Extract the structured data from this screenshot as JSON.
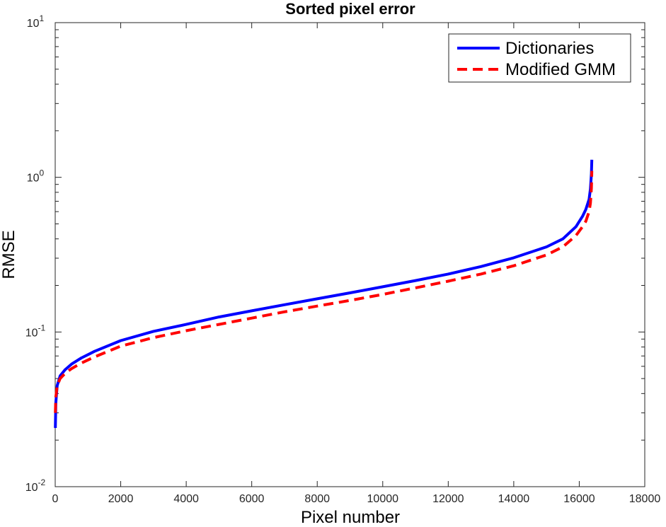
{
  "chart_data": {
    "type": "line",
    "title": "Sorted pixel error",
    "xlabel": "Pixel number",
    "ylabel": "RMSE",
    "xlim": [
      0,
      18000
    ],
    "ylim": [
      0.01,
      10
    ],
    "yscale": "log",
    "xticks": [
      0,
      2000,
      4000,
      6000,
      8000,
      10000,
      12000,
      14000,
      16000,
      18000
    ],
    "yticks": [
      {
        "value": 0.01,
        "base": "10",
        "exp": "-2"
      },
      {
        "value": 0.1,
        "base": "10",
        "exp": "-1"
      },
      {
        "value": 1,
        "base": "10",
        "exp": "0"
      },
      {
        "value": 10,
        "base": "10",
        "exp": "1"
      }
    ],
    "grid": false,
    "legend_position": "top-right",
    "series": [
      {
        "name": "Dictionaries",
        "color": "#0000ff",
        "style": "solid",
        "x": [
          5,
          20,
          60,
          150,
          300,
          500,
          800,
          1200,
          2000,
          3000,
          4000,
          5000,
          6000,
          7000,
          8000,
          9000,
          10000,
          11000,
          12000,
          13000,
          14000,
          15000,
          15500,
          15900,
          16100,
          16200,
          16300,
          16340,
          16370,
          16384
        ],
        "y": [
          0.024,
          0.035,
          0.045,
          0.052,
          0.057,
          0.062,
          0.068,
          0.075,
          0.088,
          0.101,
          0.112,
          0.125,
          0.137,
          0.15,
          0.164,
          0.179,
          0.196,
          0.215,
          0.237,
          0.265,
          0.302,
          0.355,
          0.4,
          0.48,
          0.56,
          0.62,
          0.72,
          0.84,
          1.05,
          1.3
        ]
      },
      {
        "name": "Modified GMM",
        "color": "#ff0000",
        "style": "dashed",
        "x": [
          5,
          20,
          60,
          150,
          300,
          500,
          800,
          1200,
          2000,
          3000,
          4000,
          5000,
          6000,
          7000,
          8000,
          9000,
          10000,
          11000,
          12000,
          13000,
          14000,
          15000,
          15500,
          15900,
          16100,
          16200,
          16300,
          16340,
          16370,
          16384
        ],
        "y": [
          0.03,
          0.038,
          0.045,
          0.05,
          0.054,
          0.058,
          0.063,
          0.069,
          0.081,
          0.092,
          0.102,
          0.112,
          0.123,
          0.135,
          0.147,
          0.16,
          0.175,
          0.193,
          0.213,
          0.237,
          0.268,
          0.315,
          0.355,
          0.42,
          0.48,
          0.52,
          0.6,
          0.68,
          0.85,
          1.1
        ]
      }
    ]
  }
}
